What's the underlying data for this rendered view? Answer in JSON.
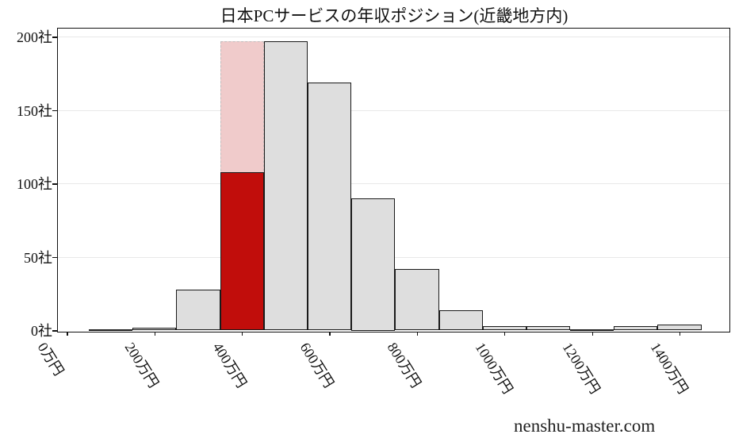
{
  "title": "日本PCサービスの年収ポジション(近畿地方内)",
  "watermark": "nenshu-master.com",
  "chart_data": {
    "type": "bar",
    "subtype": "histogram",
    "title": "日本PCサービスの年収ポジション(近畿地方内)",
    "x_unit": "万円",
    "y_unit": "社",
    "bin_width": 100,
    "bin_lower_edges": [
      50,
      150,
      250,
      350,
      450,
      550,
      650,
      750,
      850,
      950,
      1050,
      1150,
      1250,
      1350
    ],
    "counts": [
      1,
      2,
      28,
      197,
      197,
      169,
      90,
      42,
      14,
      3,
      3,
      1,
      3,
      4
    ],
    "highlight": {
      "bin_index": 3,
      "bin_range_label": "350-450万円",
      "red_value": 108,
      "pink_value": 197
    },
    "x_ticks": [
      {
        "value": 0,
        "label": "0万円"
      },
      {
        "value": 200,
        "label": "200万円"
      },
      {
        "value": 400,
        "label": "400万円"
      },
      {
        "value": 600,
        "label": "600万円"
      },
      {
        "value": 800,
        "label": "800万円"
      },
      {
        "value": 1000,
        "label": "1000万円"
      },
      {
        "value": 1200,
        "label": "1200万円"
      },
      {
        "value": 1400,
        "label": "1400万円"
      }
    ],
    "y_ticks": [
      {
        "value": 0,
        "label": "0社"
      },
      {
        "value": 50,
        "label": "50社"
      },
      {
        "value": 100,
        "label": "100社"
      },
      {
        "value": 150,
        "label": "150社"
      },
      {
        "value": 200,
        "label": "200社"
      }
    ],
    "ylim": [
      0,
      206
    ],
    "xlim": [
      -21,
      1513
    ],
    "grid": "horizontal",
    "legend": "none",
    "colors": {
      "bar_fill": "#dedede",
      "bar_border": "#1a1a1a",
      "highlight_red": "#c10d0b",
      "highlight_pink": "#f0cbcb",
      "gridline": "#e8e8e8",
      "axis": "#111111",
      "text": "#111111"
    }
  }
}
